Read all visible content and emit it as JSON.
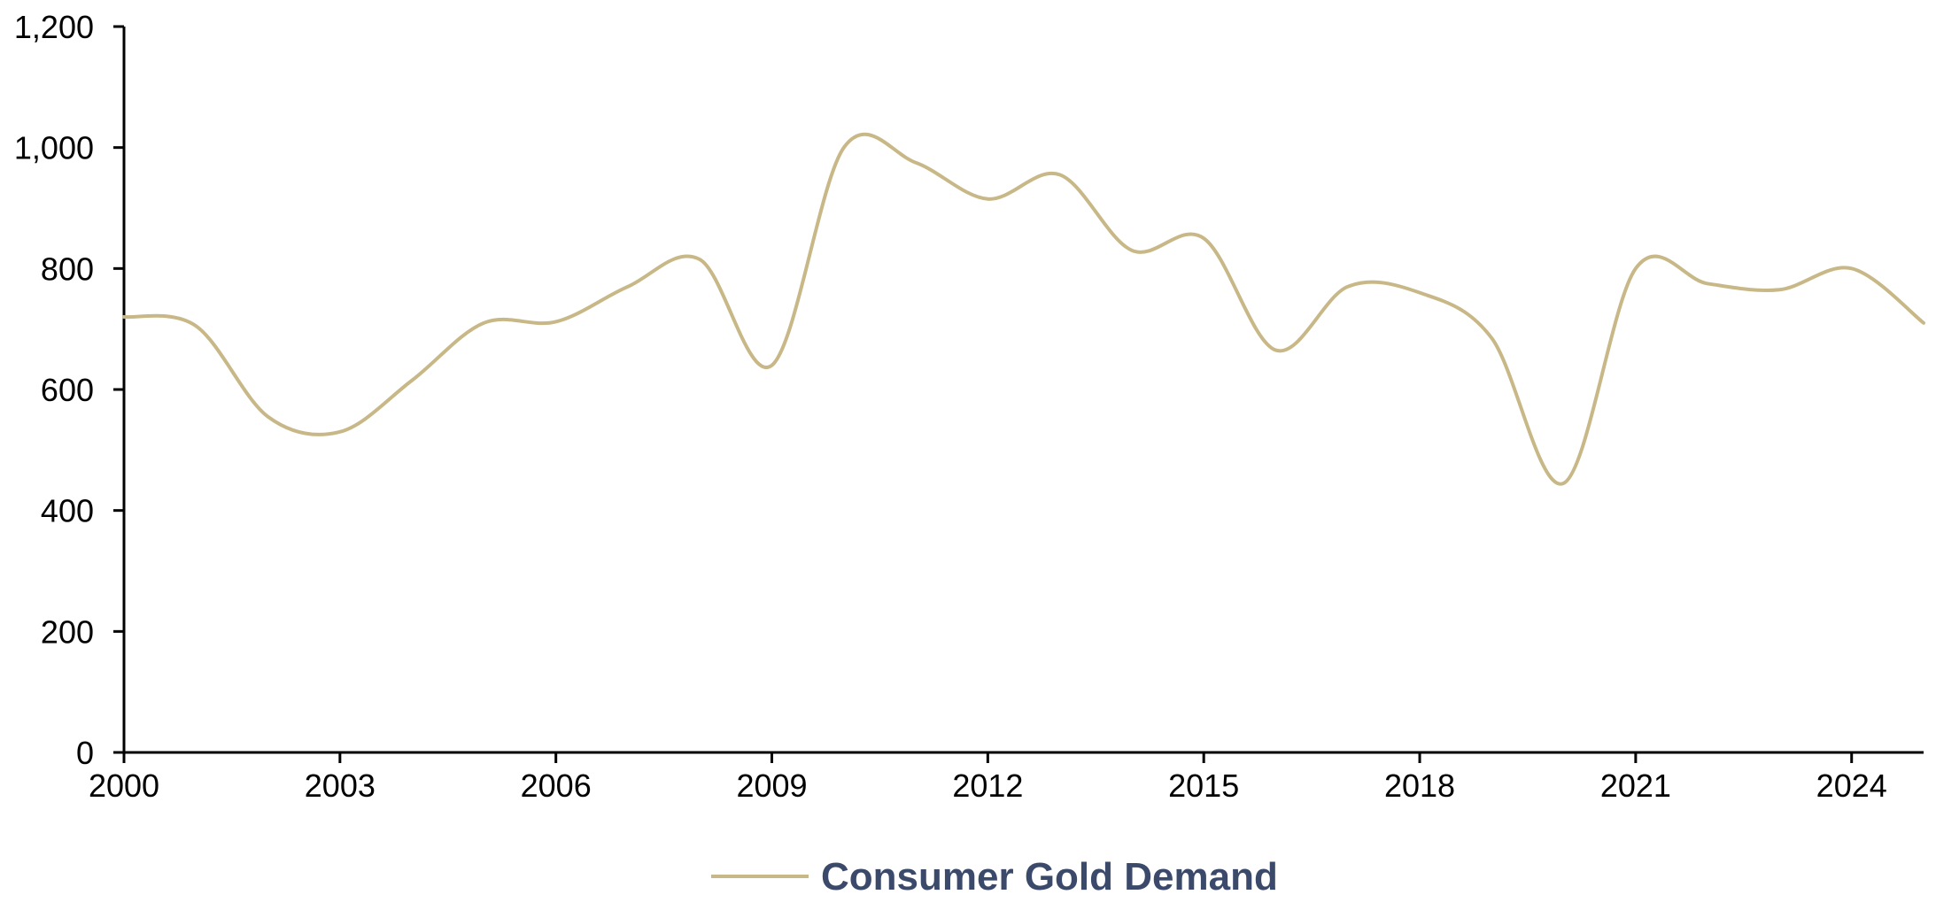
{
  "chart_data": {
    "type": "line",
    "title": "",
    "xlabel": "",
    "ylabel": "",
    "xlim": [
      2000,
      2025
    ],
    "ylim": [
      0,
      1200
    ],
    "x_ticks": [
      2000,
      2003,
      2006,
      2009,
      2012,
      2015,
      2018,
      2021,
      2024
    ],
    "x_tick_labels": [
      "2000",
      "2003",
      "2006",
      "2009",
      "2012",
      "2015",
      "2018",
      "2021",
      "2024"
    ],
    "y_ticks": [
      0,
      200,
      400,
      600,
      800,
      1000,
      1200
    ],
    "y_tick_labels": [
      "0",
      "200",
      "400",
      "600",
      "800",
      "1,000",
      "1,200"
    ],
    "grid": false,
    "legend": {
      "placement": "bottom-center",
      "entries": [
        "Consumer Gold Demand"
      ]
    },
    "series": [
      {
        "name": "Consumer Gold Demand",
        "color": "#C8B887",
        "x": [
          2000,
          2001,
          2002,
          2003,
          2004,
          2005,
          2006,
          2007,
          2008,
          2009,
          2010,
          2011,
          2012,
          2013,
          2014,
          2015,
          2016,
          2017,
          2018,
          2019,
          2020,
          2021,
          2022,
          2023,
          2024,
          2025
        ],
        "values": [
          720,
          705,
          555,
          530,
          615,
          710,
          712,
          770,
          815,
          640,
          1000,
          975,
          915,
          955,
          830,
          850,
          665,
          770,
          760,
          685,
          445,
          800,
          775,
          765,
          800,
          710
        ]
      }
    ]
  },
  "colors": {
    "axis": "#000000",
    "legend_text": "#3B4A6B"
  }
}
